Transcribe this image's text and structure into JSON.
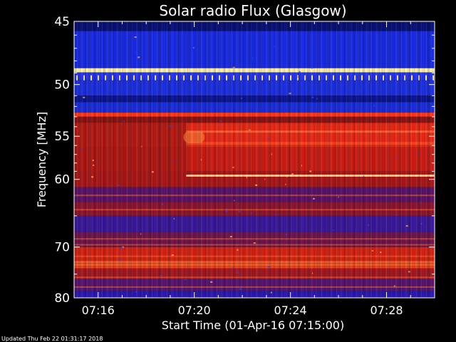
{
  "chart_data": {
    "type": "heatmap",
    "title": "Solar radio Flux (Glasgow)",
    "xlabel": "Start Time (01-Apr-16 07:15:00)",
    "ylabel": "Frequency [MHz]",
    "x_ticks": [
      "07:16",
      "07:20",
      "07:24",
      "07:28"
    ],
    "y_ticks": [
      "45",
      "50",
      "55",
      "60",
      "70",
      "80"
    ],
    "xlim": [
      "07:15:00",
      "07:30:00"
    ],
    "ylim": [
      45,
      80
    ],
    "y_scale": "reciprocal",
    "grid": false,
    "colors": {
      "background": "#000000",
      "low": "#1a2ad8",
      "mid": "#b01818",
      "high": "#ff3a1a",
      "peak": "#ffe080"
    }
  },
  "footer": {
    "updated": "Updated Thu Feb 22 01:31:17 2018"
  }
}
